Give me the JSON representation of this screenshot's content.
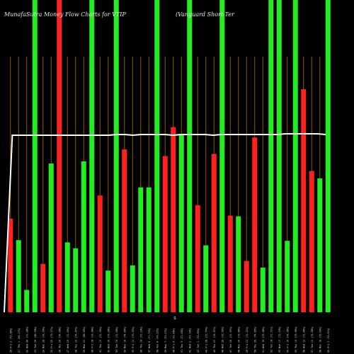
{
  "chart_data": {
    "type": "bar",
    "title_left": "MunafaSutra  Money Flow  Charts for VTIP",
    "title_right": "(Vanguard Short-Ter",
    "xlabel": "$",
    "categories": [
      "20 Fri 2 July 2021",
      "21 Thu 1 July 2021",
      "22 Wed 30 June 2021",
      "23 Tue 29 June 2021",
      "24 Mon 28 June 2021",
      "25 Fri 25 June 2021",
      "26 Thu 24 June 2021",
      "27 Wed 23 June 2021",
      "28 Tue 22 June 2021",
      "29 Mon 21 June 2021",
      "30 Fri 18 June 2021",
      "31 Thu 17 June 2021",
      "32 Wed 16 June 2021",
      "33 Tue 15 June 2021",
      "34 Mon 14 June 2021",
      "35 Fri 11 June 2021",
      "36 Thu 10 June 2021",
      "37 Wed 9 June 2021",
      "38 Tue 8 June 2021",
      "39 Mon 7 June 2021",
      "40 Fri 4 June 2021",
      "41 Thu 3 June 2021",
      "42 Wed 2 June 2021",
      "43 Tue 1 June 2021",
      "44 Fri 28 May 2021",
      "45 Thu 27 May 2021",
      "46 Wed 26 May 2021",
      "47 Tue 25 May 2021",
      "48 Mon 24 May 2021",
      "49 Fri 21 May 2021",
      "50 Thu 20 May 2021",
      "51 Wed 19 May 2021",
      "52 Tue 18 May 2021",
      "53 Mon 17 May 2021",
      "54 Fri 14 May 2021",
      "55 Thu 13 May 2021",
      "56 Wed 12 May 2021",
      "57 Tue 11 May 2021",
      "58 Mon 10 May 2021",
      "59 Fri 7 May 2021"
    ],
    "tick_labels": [
      "20 Fri 2 (72.96%)",
      "21 Thu 1 (64.17%)",
      "22 Wed 30 (71.96%)",
      "23 Tue 29 (69.78%)",
      "24 Mon 28 (74.76%)",
      "25 Fri 25 (73.17%)",
      "26 Thu 24 (74.48%)",
      "27 Wed 23 (71.45%)",
      "28 Tue 22 (74.47%)",
      "29 Mon 21 (69.93%)",
      "30 Fri 18 (73.36%)",
      "31 Thu 17 (71.76%)",
      "32 Wed 16 (73.26%)",
      "33 Tue 15 (71.50%)",
      "34 Mon 14 (74.09%)",
      "35 Fri 11 (73.75%)",
      "36 Thu 10 (72.18%)",
      "37 Wed 9 (71.73%)",
      "38 Tue 8 (74.22%)",
      "39 Mon 7 (72.27%)",
      "40 Fri 4 (72.46%)",
      "41 Thu 3 (71.48%)",
      "42 Wed 2 (73.16%)",
      "43 Tue 1 (74.89%)",
      "44 Fri 28 (72.74%)",
      "45 Thu 27 (74.27%)",
      "46 Wed 26 (72.95%)",
      "47 Tue 25 (71.97%)",
      "48 Mon 24 (73.66%)",
      "49 Fri 21 (71.21%)",
      "50 Thu 20 (74.65%)",
      "51 Wed 19 (73.96%)",
      "52 Tue 18 (71.71%)",
      "53 Mon 17 (72.10%)",
      "54 Fri 14 (74.56%)",
      "55 Thu 13 (73.90%)",
      "56 Wed 12 (71.46%)",
      "57 Tue 11 (74.58%)",
      "58 Mon 10 (72.49%)",
      "59 Fri 7 (74.97%)"
    ],
    "series": [
      {
        "values": [
          126,
          97,
          30,
          420,
          65,
          200,
          420,
          94,
          86,
          203,
          420,
          157,
          56,
          420,
          219,
          63,
          168,
          168,
          420,
          210,
          249,
          240,
          420,
          144,
          90,
          213,
          420,
          130,
          129,
          69,
          235,
          60,
          420,
          420,
          96,
          420,
          300,
          190,
          180,
          420
        ],
        "colors": [
          "red",
          "green",
          "green",
          "green",
          "red",
          "green",
          "red",
          "green",
          "green",
          "green",
          "green",
          "red",
          "green",
          "green",
          "red",
          "green",
          "green",
          "green",
          "green",
          "red",
          "red",
          "green",
          "green",
          "red",
          "green",
          "red",
          "green",
          "red",
          "green",
          "red",
          "red",
          "green",
          "green",
          "green",
          "green",
          "green",
          "red",
          "red",
          "green",
          "green"
        ]
      }
    ],
    "price_line": [
      0,
      250,
      250,
      250,
      250,
      250,
      250,
      250,
      250,
      250,
      250,
      250,
      250,
      250,
      251,
      251,
      250,
      251,
      251,
      251,
      251,
      250,
      251,
      251,
      251,
      251,
      250,
      251,
      251,
      251,
      251,
      251,
      251,
      251,
      251,
      252,
      252,
      252,
      252,
      252,
      251
    ],
    "ylim": [
      0,
      420
    ],
    "colors": {
      "red": "#ff2020",
      "green": "#22ee22",
      "grid": "#8b5a00",
      "price": "#ffffff",
      "background": "#000000"
    },
    "grid": true
  }
}
